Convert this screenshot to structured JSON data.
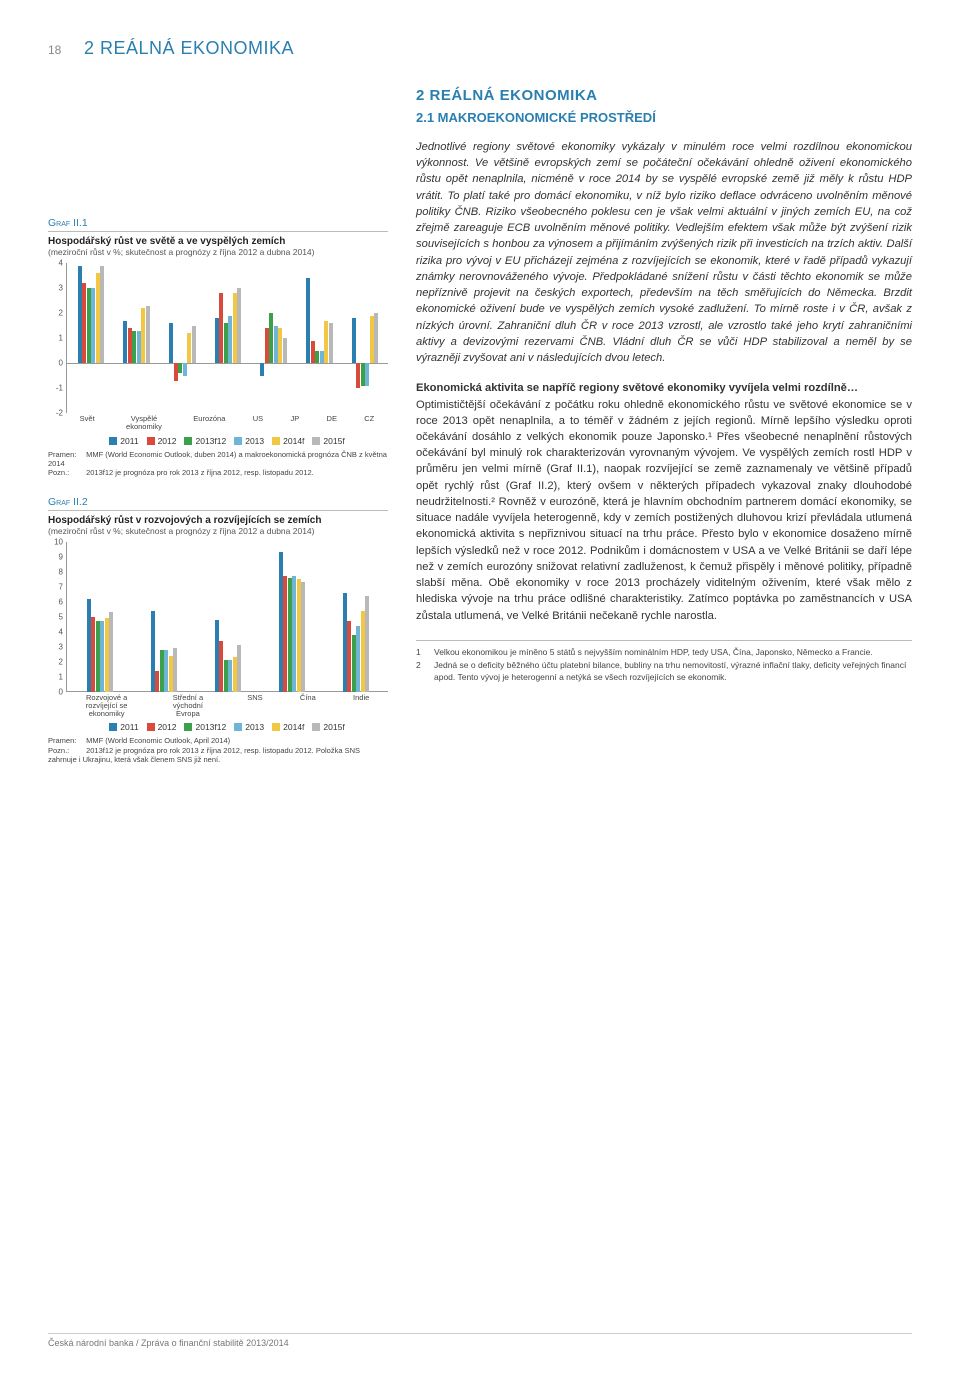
{
  "page_number": "18",
  "header_title": "2 REÁLNÁ EKONOMIKA",
  "right": {
    "heading": "2 REÁLNÁ EKONOMIKA",
    "subheading": "2.1 MAKROEKONOMICKÉ PROSTŘEDÍ",
    "intro_italic": "Jednotlivé regiony světové ekonomiky vykázaly v minulém roce velmi rozdílnou ekonomickou výkonnost. Ve většině evropských zemí se počáteční očekávání ohledně oživení ekonomického růstu opět nenaplnila, nicméně v roce 2014 by se vyspělé evropské země již měly k růstu HDP vrátit. To platí také pro domácí ekonomiku, v níž bylo riziko deflace odvráceno uvolněním měnové politiky ČNB. Riziko všeobecného poklesu cen je však velmi aktuální v jiných zemích EU, na což zřejmě zareaguje ECB uvolněním měnové politiky. Vedlejším efektem však může být zvýšení rizik souvisejících s honbou za výnosem a přijímáním zvýšených rizik při investicích na trzích aktiv. Další rizika pro vývoj v EU přicházejí zejména z rozvíjejících se ekonomik, které v řadě případů vykazují známky nerovnováženého vývoje. Předpokládané snížení růstu v části těchto ekonomik se může nepříznivě projevit na českých exportech, především na těch směřujících do Německa. Brzdit ekonomické oživení bude ve vyspělých zemích vysoké zadlužení. To mírně roste i v ČR, avšak z nízkých úrovní. Zahraniční dluh ČR v roce 2013 vzrostl, ale vzrostlo také jeho krytí zahraničními aktivy a devizovými rezervami ČNB. Vládní dluh ČR se vůči HDP stabilizoval a neměl by se výrazněji zvyšovat ani v následujících dvou letech.",
    "para2_lead": "Ekonomická aktivita se napříč regiony světové ekonomiky vyvíjela velmi rozdílně…",
    "para2_body": "Optimističtější očekávání z počátku roku ohledně ekonomického růstu ve světové ekonomice se v roce 2013 opět nenaplnila, a to téměř v žádném z jejích regionů. Mírně lepšího výsledku oproti očekávání dosáhlo z velkých ekonomik pouze Japonsko.¹ Přes všeobecné nenaplnění růstových očekávání byl minulý rok charakterizován vyrovnaným vývojem. Ve vyspělých zemích rostl HDP v průměru jen velmi mírně (Graf II.1), naopak rozvíjející se země zaznamenaly ve většině případů opět rychlý růst (Graf II.2), který ovšem v některých případech vykazoval znaky dlouhodobé neudržitelnosti.² Rovněž v eurozóně, která je hlavním obchodním partnerem domácí ekonomiky, se situace nadále vyvíjela heterogenně, kdy v zemích postižených dluhovou krizí převládala utlumená ekonomická aktivita s nepřiznivou situací na trhu práce. Přesto bylo v ekonomice dosaženo mírně lepších výsledků než v roce 2012. Podnikům i domácnostem v USA a ve Velké Británii se daří lépe než v zemích eurozóny snižovat relativní zadluženost, k čemuž přispěly i měnové politiky, případně slabší měna. Obě ekonomiky v roce 2013 procházely viditelným oživením, které však mělo z hlediska vývoje na trhu práce odlišné charakteristiky. Zatímco poptávka po zaměstnancích v USA zůstala utlumená, ve Velké Británii nečekaně rychle narostla."
  },
  "series_legend": [
    "2011",
    "2012",
    "2013f12",
    "2013",
    "2014f",
    "2015f"
  ],
  "series_colors": [
    "#2a7fb0",
    "#d94a3a",
    "#3aa04a",
    "#6fb5d6",
    "#f2c744",
    "#b8b8b8"
  ],
  "chart1": {
    "label": "Graf II.1",
    "title": "Hospodářský růst ve světě a ve vyspělých zemích",
    "subtitle": "(meziroční růst v %; skutečnost a prognózy z října 2012 a dubna 2014)",
    "ymin": -2,
    "ymax": 4,
    "ytick_step": 1,
    "categories": [
      "Svět",
      "Vyspělé ekonomiky",
      "Eurozóna",
      "US",
      "JP",
      "DE",
      "CZ"
    ],
    "values": [
      [
        3.9,
        3.2,
        3.0,
        3.0,
        3.6,
        3.9
      ],
      [
        1.7,
        1.4,
        1.3,
        1.3,
        2.2,
        2.3
      ],
      [
        1.6,
        -0.7,
        -0.4,
        -0.5,
        1.2,
        1.5
      ],
      [
        1.8,
        2.8,
        1.6,
        1.9,
        2.8,
        3.0
      ],
      [
        -0.5,
        1.4,
        2.0,
        1.5,
        1.4,
        1.0
      ],
      [
        3.4,
        0.9,
        0.5,
        0.5,
        1.7,
        1.6
      ],
      [
        1.8,
        -1.0,
        -0.9,
        -0.9,
        1.9,
        2.0
      ]
    ],
    "source_label": "Pramen:",
    "source": "MMF (World Economic Outlook, duben 2014) a makroekonomická prognóza ČNB z května 2014",
    "note_label": "Pozn.:",
    "note": "2013f12 je prognóza pro rok 2013 z října 2012, resp. listopadu 2012."
  },
  "chart2": {
    "label": "Graf II.2",
    "title": "Hospodářský růst v rozvojových a rozvíjejících se zemích",
    "subtitle": "(meziroční růst v %; skutečnost a prognózy z října 2012 a dubna 2014)",
    "ymin": 0,
    "ymax": 10,
    "ytick_step": 1,
    "categories": [
      "Rozvojové a rozvíjející se ekonomiky",
      "Střední a východní Evropa",
      "SNS",
      "Čína",
      "Indie"
    ],
    "values": [
      [
        6.2,
        5.0,
        4.7,
        4.7,
        4.9,
        5.3
      ],
      [
        5.4,
        1.4,
        2.8,
        2.8,
        2.4,
        2.9
      ],
      [
        4.8,
        3.4,
        2.1,
        2.1,
        2.3,
        3.1
      ],
      [
        9.3,
        7.7,
        7.6,
        7.7,
        7.5,
        7.3
      ],
      [
        6.6,
        4.7,
        3.8,
        4.4,
        5.4,
        6.4
      ]
    ],
    "source_label": "Pramen:",
    "source": "MMF (World Economic Outlook, April 2014)",
    "note_label": "Pozn.:",
    "note": "2013f12 je prognóza pro rok 2013 z října 2012, resp. listopadu 2012. Položka SNS zahrnuje i Ukrajinu, která však členem SNS již není."
  },
  "footnotes": [
    {
      "n": "1",
      "text": "Velkou ekonomikou je míněno 5 států s nejvyšším nominálním HDP, tedy USA, Čína, Japonsko, Německo a Francie."
    },
    {
      "n": "2",
      "text": "Jedná se o deficity běžného účtu platební bilance, bubliny na trhu nemovitostí, výrazné inflační tlaky, deficity veřejných financí apod. Tento vývoj je heterogenní a netýká se všech rozvíjejících se ekonomik."
    }
  ],
  "footer": "Česká národní banka / Zpráva o finanční stabilitě 2013/2014"
}
